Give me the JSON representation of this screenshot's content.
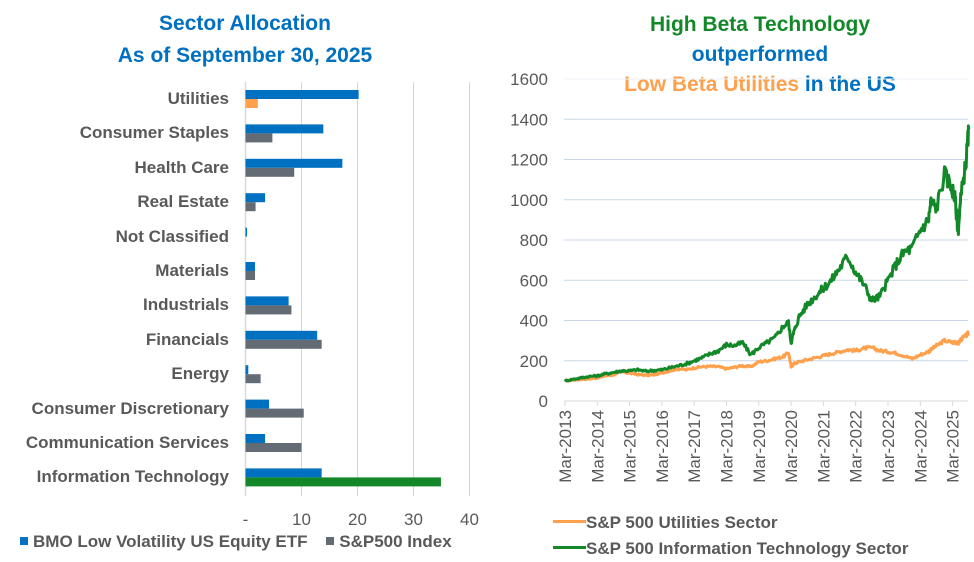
{
  "chart_data": [
    {
      "type": "bar",
      "orientation": "horizontal",
      "title": "Sector Allocation",
      "subtitle": "As of September 30, 2025",
      "categories": [
        "Utilities",
        "Consumer Staples",
        "Health Care",
        "Real Estate",
        "Not Classified",
        "Materials",
        "Industrials",
        "Financials",
        "Energy",
        "Consumer Discretionary",
        "Communication Services",
        "Information Technology"
      ],
      "series": [
        {
          "name": "BMO Low Volatility US Equity ETF",
          "color": "#0070C0",
          "values": [
            20.2,
            13.9,
            17.3,
            3.5,
            0.2,
            1.7,
            7.7,
            12.8,
            0.5,
            4.2,
            3.5,
            13.6
          ]
        },
        {
          "name": "S&P500 Index",
          "color": "#636B75",
          "values": [
            2.2,
            4.8,
            8.7,
            1.8,
            0,
            1.7,
            8.2,
            13.6,
            2.7,
            10.4,
            10.0,
            34.9
          ]
        }
      ],
      "highlight_colors": {
        "Utilities": "#FFA04D",
        "Information Technology": "#138828"
      },
      "xlim": [
        0,
        40
      ],
      "xticks": [
        "-",
        "10",
        "20",
        "30",
        "40"
      ],
      "grid": true,
      "legend": "bottom"
    },
    {
      "type": "line",
      "title_parts": [
        {
          "text": "High Beta Technology",
          "color": "#138828"
        },
        {
          "text": "outperformed",
          "color": "#0070C0"
        },
        {
          "text": "Low Beta Utilities",
          "color": "#FFA04D"
        },
        {
          "text": "in the US",
          "color": "#0070C0"
        }
      ],
      "ylim": [
        0,
        1600
      ],
      "yticks": [
        "0",
        "200",
        "400",
        "600",
        "800",
        "1000",
        "1200",
        "1400",
        "1600"
      ],
      "xticks": [
        "Mar-2013",
        "Mar-2014",
        "Mar-2015",
        "Mar-2016",
        "Mar-2017",
        "Mar-2018",
        "Mar-2019",
        "Mar-2020",
        "Mar-2021",
        "Mar-2022",
        "Mar-2023",
        "Mar-2024",
        "Mar-2025"
      ],
      "x_years_from_mar2013": [
        0,
        0.25,
        0.5,
        0.75,
        1,
        1.25,
        1.5,
        1.75,
        2,
        2.25,
        2.5,
        2.75,
        3,
        3.25,
        3.5,
        3.75,
        4,
        4.25,
        4.5,
        4.75,
        5,
        5.25,
        5.5,
        5.75,
        6,
        6.25,
        6.5,
        6.75,
        6.92,
        7,
        7.08,
        7.25,
        7.5,
        7.75,
        8,
        8.25,
        8.5,
        8.75,
        9,
        9.25,
        9.5,
        9.75,
        10,
        10.25,
        10.5,
        10.75,
        11,
        11.25,
        11.33,
        11.5,
        11.75,
        12,
        12.08,
        12.17,
        12.25,
        12.42,
        12.5
      ],
      "series": [
        {
          "name": "S&P 500 Utilities Sector",
          "color": "#FFA04D",
          "values": [
            100,
            104,
            108,
            110,
            115,
            125,
            130,
            145,
            138,
            132,
            128,
            130,
            140,
            150,
            160,
            155,
            165,
            170,
            172,
            170,
            160,
            168,
            175,
            170,
            195,
            200,
            210,
            220,
            240,
            170,
            185,
            195,
            205,
            215,
            225,
            235,
            245,
            255,
            250,
            262,
            265,
            250,
            245,
            238,
            225,
            210,
            230,
            245,
            255,
            275,
            300,
            290,
            295,
            285,
            305,
            325,
            340
          ]
        },
        {
          "name": "S&P 500 Information Technology Sector",
          "color": "#138828",
          "values": [
            100,
            108,
            115,
            122,
            125,
            135,
            142,
            150,
            150,
            155,
            148,
            152,
            155,
            165,
            175,
            185,
            200,
            215,
            235,
            250,
            280,
            275,
            290,
            230,
            265,
            290,
            315,
            370,
            390,
            290,
            340,
            420,
            480,
            520,
            560,
            600,
            660,
            720,
            640,
            580,
            500,
            520,
            600,
            680,
            740,
            760,
            850,
            900,
            990,
            960,
            1130,
            1050,
            1000,
            840,
            1000,
            1200,
            1350
          ]
        }
      ],
      "grid": true,
      "legend": "bottom-left"
    }
  ],
  "left_chart": {
    "title": "Sector Allocation",
    "subtitle": "As of September 30, 2025",
    "legend": [
      "BMO Low Volatility US Equity ETF",
      "S&P500 Index"
    ]
  },
  "right_chart": {
    "title_line1": "High Beta Technology",
    "title_line2": "outperformed",
    "title_line3a": "Low Beta Utilities",
    "title_line3b": " in the US",
    "legend": [
      "S&P 500 Utilities Sector",
      "S&P 500 Information Technology Sector"
    ]
  },
  "colors": {
    "blue": "#0070C0",
    "gray": "#636B75",
    "orange": "#FFA04D",
    "green": "#138828",
    "text": "#595959",
    "grid": "#C9D7EA"
  }
}
